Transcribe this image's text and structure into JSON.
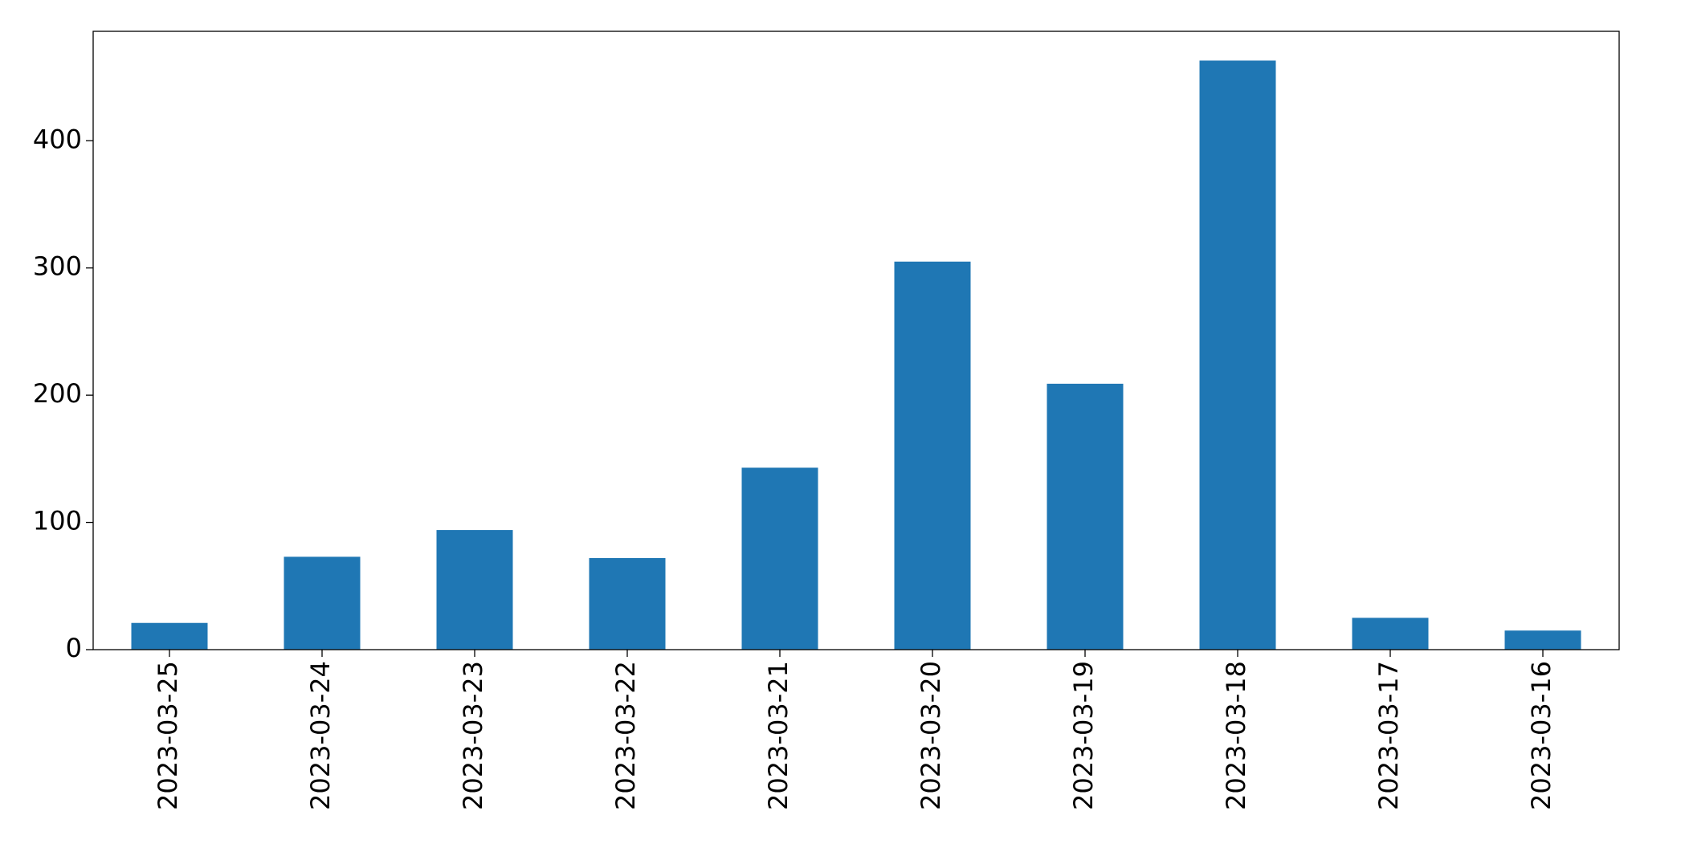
{
  "chart_data": {
    "type": "bar",
    "categories": [
      "2023-03-25",
      "2023-03-24",
      "2023-03-23",
      "2023-03-22",
      "2023-03-21",
      "2023-03-20",
      "2023-03-19",
      "2023-03-18",
      "2023-03-17",
      "2023-03-16"
    ],
    "values": [
      21,
      73,
      94,
      72,
      143,
      305,
      209,
      463,
      25,
      15
    ],
    "color": "#1f77b4",
    "ylim": [
      0,
      486
    ],
    "yticks": [
      0,
      100,
      200,
      300,
      400
    ],
    "grid": false
  }
}
